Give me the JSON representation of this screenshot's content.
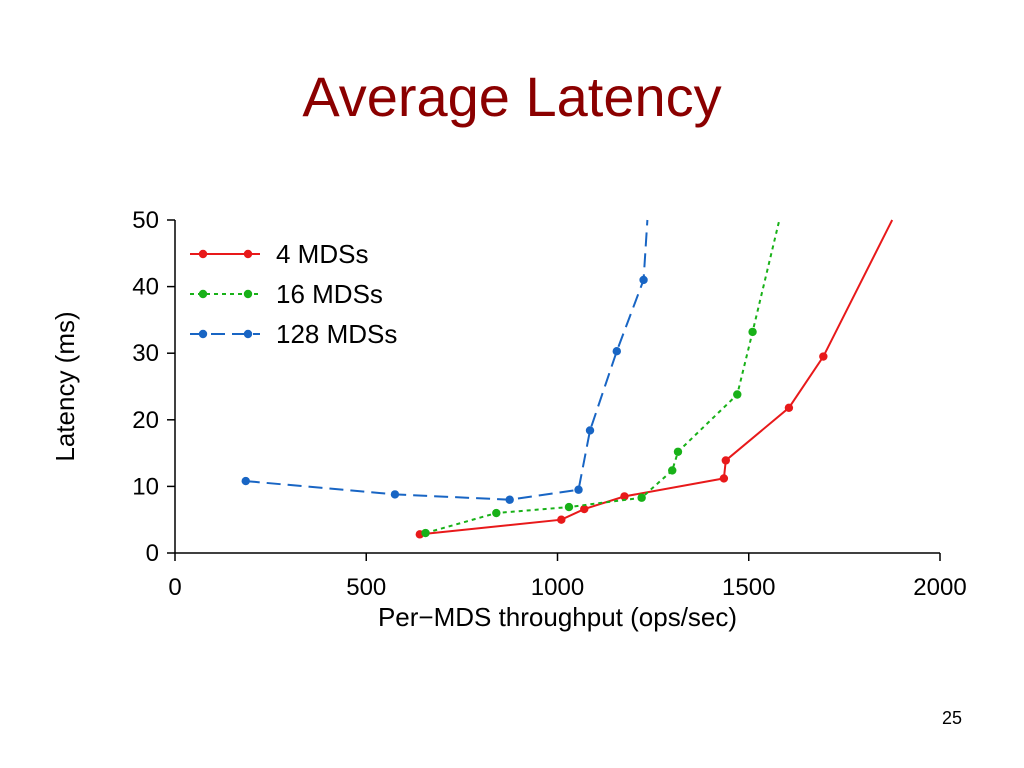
{
  "slide": {
    "title": "Average Latency",
    "page_number": "25"
  },
  "colors": {
    "title": "#8b0000",
    "axis": "#000000"
  },
  "chart_data": {
    "type": "line",
    "title": "",
    "xlabel": "Per−MDS throughput (ops/sec)",
    "ylabel": "Latency (ms)",
    "xlim": [
      0,
      2000
    ],
    "ylim": [
      0,
      50
    ],
    "xticks": [
      0,
      500,
      1000,
      1500,
      2000
    ],
    "yticks": [
      0,
      10,
      20,
      30,
      40,
      50
    ],
    "grid": false,
    "legend_position": "top-left",
    "series": [
      {
        "name": "4 MDSs",
        "color": "#e8191a",
        "dash": "solid",
        "points": [
          [
            640,
            2.8
          ],
          [
            1010,
            5.0
          ],
          [
            1070,
            6.6
          ],
          [
            1175,
            8.5
          ],
          [
            1435,
            11.2
          ],
          [
            1440,
            13.9
          ],
          [
            1605,
            21.8
          ],
          [
            1695,
            29.5
          ]
        ],
        "line_end": [
          1875,
          50
        ]
      },
      {
        "name": "16 MDSs",
        "color": "#18b118",
        "dash": "short",
        "points": [
          [
            655,
            3.0
          ],
          [
            840,
            6.0
          ],
          [
            1030,
            6.9
          ],
          [
            1220,
            8.3
          ],
          [
            1300,
            12.4
          ],
          [
            1315,
            15.2
          ],
          [
            1470,
            23.8
          ],
          [
            1510,
            33.2
          ]
        ],
        "line_end": [
          1580,
          50
        ]
      },
      {
        "name": "128 MDSs",
        "color": "#1865c4",
        "dash": "long",
        "points": [
          [
            185,
            10.8
          ],
          [
            575,
            8.8
          ],
          [
            875,
            8.0
          ],
          [
            1055,
            9.5
          ],
          [
            1085,
            18.4
          ],
          [
            1155,
            30.3
          ],
          [
            1225,
            41.0
          ]
        ],
        "line_end": [
          1235,
          50
        ]
      }
    ]
  }
}
